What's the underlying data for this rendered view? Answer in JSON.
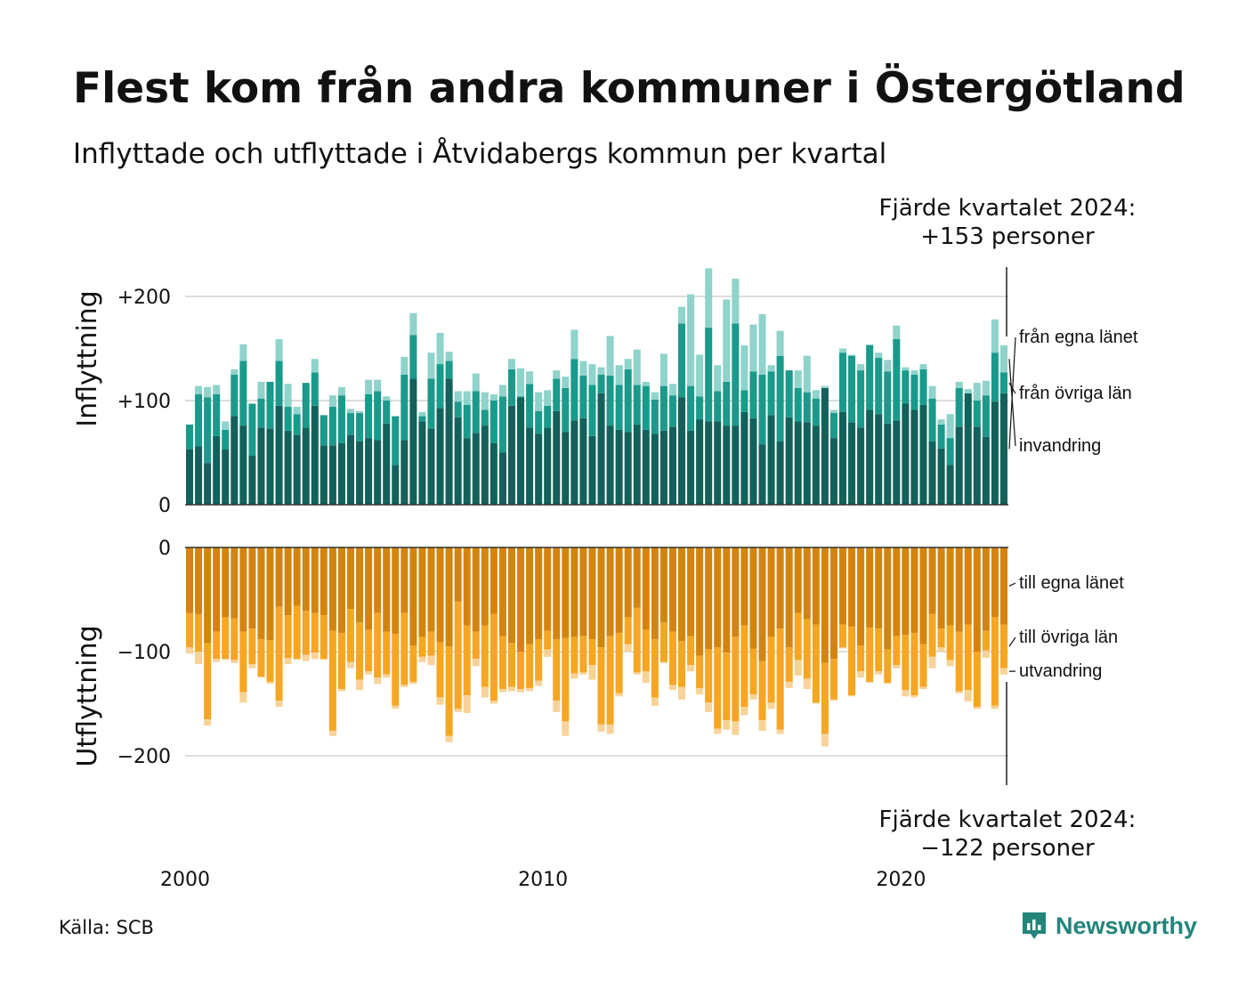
{
  "title": "Flest kom från andra kommuner i Östergötland",
  "subtitle": "Inflyttade och utflyttade i Åtvidabergs kommun per kvartal",
  "source": "Källa: SCB",
  "brand": "Newsworthy",
  "colors": {
    "in_egna": "#12615a",
    "in_ovriga": "#1a9a8b",
    "in_invandring": "#8fd3cb",
    "out_egna": "#d4840e",
    "out_ovriga": "#f6a623",
    "out_utvandring": "#f8d399",
    "grid": "#dddddd",
    "brand": "#23857a"
  },
  "chart_data": [
    {
      "type": "bar",
      "stacked": true,
      "ylabel": "Inflyttning",
      "ylim": [
        0,
        230
      ],
      "yticks": [
        0,
        100,
        200
      ],
      "ytick_labels": [
        "0",
        "+100",
        "+200"
      ],
      "x_start": "2000 K1",
      "x_tick_labels": [
        "2000",
        "2010",
        "2020"
      ],
      "grid": true,
      "series": [
        {
          "name": "från egna länet",
          "values": [
            53,
            56,
            40,
            66,
            53,
            85,
            76,
            47,
            74,
            73,
            95,
            71,
            67,
            74,
            95,
            57,
            57,
            59,
            67,
            61,
            64,
            62,
            78,
            38,
            62,
            121,
            80,
            73,
            93,
            121,
            84,
            64,
            69,
            76,
            59,
            50,
            95,
            103,
            74,
            68,
            74,
            90,
            70,
            81,
            83,
            66,
            107,
            76,
            72,
            70,
            77,
            72,
            68,
            71,
            75,
            103,
            71,
            82,
            80,
            80,
            76,
            76,
            89,
            83,
            58,
            86,
            61,
            84,
            80,
            79,
            76,
            112,
            64,
            89,
            79,
            74,
            91,
            87,
            78,
            81,
            97,
            91,
            96,
            61,
            54,
            38,
            75,
            107,
            75,
            65,
            99,
            107
          ]
        },
        {
          "name": "från övriga län",
          "values": [
            24,
            50,
            63,
            40,
            19,
            40,
            62,
            50,
            28,
            45,
            43,
            23,
            20,
            43,
            32,
            29,
            37,
            46,
            21,
            27,
            42,
            47,
            22,
            47,
            63,
            42,
            5,
            48,
            42,
            17,
            15,
            32,
            40,
            15,
            41,
            54,
            35,
            1,
            42,
            22,
            21,
            31,
            42,
            59,
            41,
            49,
            18,
            48,
            43,
            60,
            38,
            42,
            33,
            43,
            30,
            71,
            43,
            22,
            90,
            29,
            42,
            98,
            21,
            45,
            67,
            42,
            82,
            45,
            32,
            29,
            26,
            0,
            24,
            57,
            64,
            55,
            62,
            54,
            50,
            78,
            32,
            34,
            34,
            41,
            23,
            26,
            37,
            0,
            25,
            40,
            47,
            20
          ]
        },
        {
          "name": "invandring",
          "values": [
            0,
            8,
            10,
            9,
            8,
            5,
            16,
            0,
            16,
            0,
            21,
            22,
            7,
            0,
            13,
            0,
            11,
            8,
            4,
            2,
            14,
            11,
            4,
            0,
            17,
            21,
            4,
            25,
            30,
            9,
            10,
            13,
            17,
            17,
            6,
            11,
            10,
            27,
            12,
            18,
            15,
            8,
            11,
            28,
            14,
            20,
            7,
            38,
            19,
            10,
            34,
            4,
            7,
            31,
            11,
            16,
            88,
            40,
            57,
            25,
            79,
            43,
            43,
            45,
            58,
            6,
            24,
            0,
            17,
            35,
            8,
            2,
            3,
            4,
            1,
            6,
            1,
            5,
            11,
            13,
            3,
            4,
            5,
            12,
            5,
            23,
            6,
            4,
            17,
            14,
            32,
            26
          ]
        }
      ]
    },
    {
      "type": "bar",
      "stacked": true,
      "ylabel": "Utflyttning",
      "ylim": [
        -230,
        0
      ],
      "yticks": [
        0,
        -100,
        -200
      ],
      "ytick_labels": [
        "0",
        "−100",
        "−200"
      ],
      "x_tick_labels": [
        "2000",
        "2010",
        "2020"
      ],
      "grid": true,
      "series": [
        {
          "name": "till egna länet",
          "values": [
            -63,
            -64,
            -92,
            -81,
            -67,
            -68,
            -81,
            -78,
            -88,
            -89,
            -57,
            -65,
            -56,
            -61,
            -63,
            -65,
            -80,
            -82,
            -59,
            -72,
            -79,
            -63,
            -81,
            -83,
            -63,
            -94,
            -86,
            -81,
            -91,
            -95,
            -52,
            -75,
            -81,
            -75,
            -64,
            -85,
            -92,
            -100,
            -93,
            -88,
            -80,
            -88,
            -87,
            -86,
            -85,
            -88,
            -96,
            -85,
            -82,
            -67,
            -58,
            -79,
            -88,
            -72,
            -81,
            -90,
            -85,
            -104,
            -98,
            -96,
            -101,
            -86,
            -75,
            -97,
            -109,
            -86,
            -78,
            -96,
            -63,
            -69,
            -74,
            -111,
            -107,
            -74,
            -76,
            -94,
            -77,
            -78,
            -98,
            -85,
            -84,
            -82,
            -93,
            -64,
            -78,
            -75,
            -81,
            -74,
            -100,
            -80,
            -67,
            -74
          ]
        },
        {
          "name": "till övriga län",
          "values": [
            -33,
            -36,
            -73,
            -26,
            -40,
            -40,
            -58,
            -34,
            -36,
            -40,
            -90,
            -41,
            -51,
            -42,
            -38,
            -42,
            -96,
            -54,
            -51,
            -55,
            -40,
            -62,
            -41,
            -69,
            -69,
            -35,
            -19,
            -23,
            -53,
            -86,
            -103,
            -67,
            -26,
            -59,
            -83,
            -51,
            -42,
            -36,
            -42,
            -40,
            -18,
            -59,
            -80,
            -35,
            -35,
            -25,
            -74,
            -85,
            -58,
            -26,
            -62,
            -40,
            -56,
            -38,
            -51,
            -44,
            -28,
            -31,
            -51,
            -78,
            -65,
            -81,
            -78,
            -44,
            -57,
            -63,
            -97,
            -33,
            -45,
            -57,
            -75,
            -68,
            -39,
            -22,
            -66,
            -25,
            -52,
            -41,
            -32,
            -28,
            -53,
            -60,
            -41,
            -41,
            -18,
            -33,
            -57,
            -63,
            -53,
            -19,
            -85,
            -42
          ]
        },
        {
          "name": "utvandring",
          "values": [
            -6,
            -12,
            -6,
            -3,
            -1,
            -3,
            -10,
            -4,
            -1,
            -2,
            -6,
            -6,
            -1,
            -6,
            -6,
            -1,
            -5,
            -2,
            -6,
            -10,
            -3,
            -6,
            -3,
            -3,
            -2,
            -2,
            -5,
            -9,
            -7,
            -6,
            -3,
            -17,
            -7,
            -10,
            -3,
            -3,
            -4,
            -3,
            -3,
            -5,
            -7,
            -11,
            -14,
            -5,
            -2,
            -14,
            -7,
            -9,
            -3,
            -7,
            -2,
            -11,
            -8,
            -1,
            -5,
            -12,
            -6,
            -6,
            -9,
            -5,
            -9,
            -13,
            -8,
            -5,
            -10,
            -6,
            -4,
            -6,
            -15,
            -10,
            -1,
            -12,
            -1,
            -1,
            -1,
            -6,
            -1,
            -3,
            -1,
            -3,
            -6,
            -2,
            -2,
            -11,
            -4,
            -6,
            -2,
            -11,
            -2,
            -7,
            -3,
            -6
          ]
        }
      ]
    }
  ],
  "annotations": {
    "top_line1": "Fjärde kvartalet 2024:",
    "top_line2": "+153 personer",
    "bottom_line1": "Fjärde kvartalet 2024:",
    "bottom_line2": "−122 personer"
  }
}
